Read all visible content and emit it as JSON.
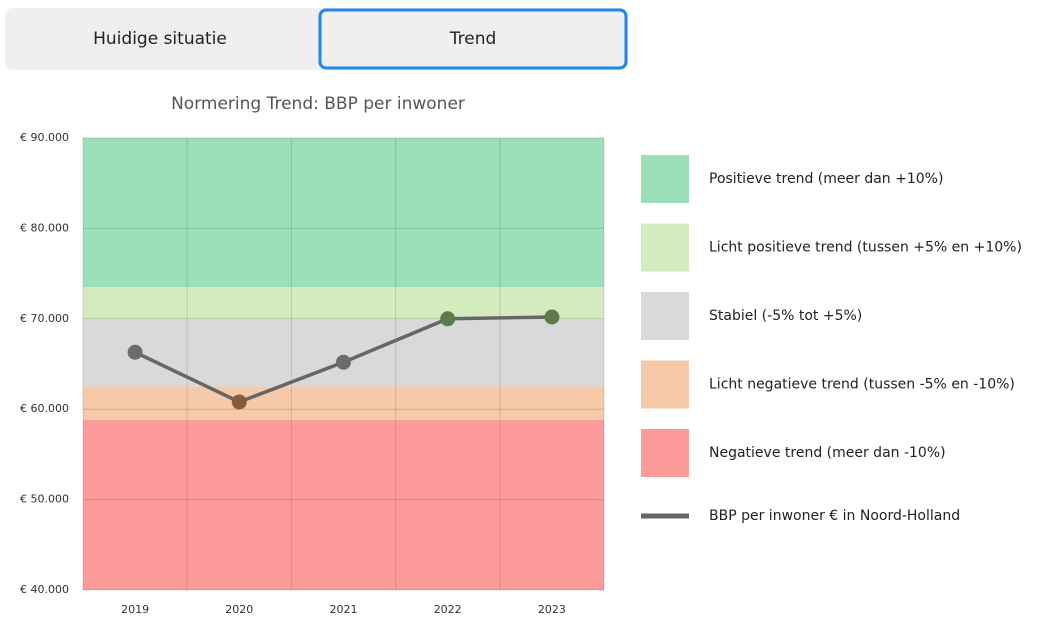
{
  "tabs": [
    "Huidige situatie",
    "Trend"
  ],
  "active_tab": 1,
  "chart_data": {
    "type": "line",
    "title": "Normering Trend: BBP per inwoner",
    "categories": [
      "2019",
      "2020",
      "2021",
      "2022",
      "2023"
    ],
    "series": [
      {
        "name": "BBP per inwoner € in Noord-Holland",
        "color": "#666666",
        "values": [
          66300,
          60800,
          65200,
          70000,
          70200
        ],
        "point_colors": [
          "#6b6b6b",
          "#8a5a3c",
          "#6b6b6b",
          "#5e7a48",
          "#5e7a48"
        ]
      }
    ],
    "bands": [
      {
        "name": "Positieve trend (meer dan +10%)",
        "color": "#9be0b9",
        "from": 73500,
        "to": 90000
      },
      {
        "name": "Licht positieve trend (tussen +5% en +10%)",
        "color": "#d4ebbd",
        "from": 69900,
        "to": 73500
      },
      {
        "name": "Stabiel (-5% tot +5%)",
        "color": "#d9d9d9",
        "from": 62500,
        "to": 69900
      },
      {
        "name": "Licht negatieve trend (tussen -5% en -10%)",
        "color": "#f6c9a9",
        "from": 58800,
        "to": 62500
      },
      {
        "name": "Negatieve trend (meer dan -10%)",
        "color": "#fd9a9a",
        "from": 40000,
        "to": 58800
      }
    ],
    "ylim": [
      40000,
      90000
    ],
    "yticks": [
      {
        "value": 40000,
        "label": "€ 40.000"
      },
      {
        "value": 50000,
        "label": "€ 50.000"
      },
      {
        "value": 60000,
        "label": "€ 60.000"
      },
      {
        "value": 70000,
        "label": "€ 70.000"
      },
      {
        "value": 80000,
        "label": "€ 80.000"
      },
      {
        "value": 90000,
        "label": "€ 90.000"
      }
    ],
    "grid": true
  }
}
